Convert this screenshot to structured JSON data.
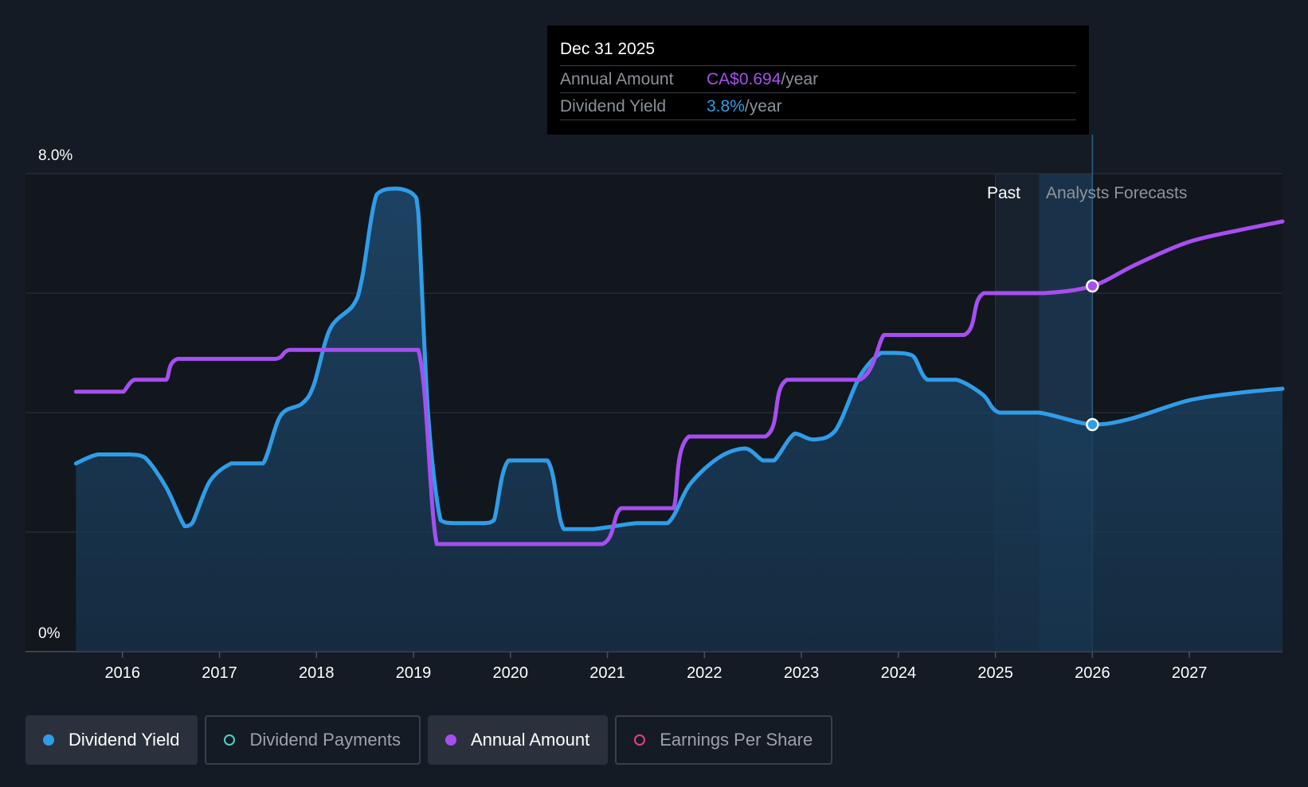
{
  "tooltip": {
    "date": "Dec 31 2025",
    "rows": [
      {
        "label": "Annual Amount",
        "value": "CA$0.694",
        "unit": "/year"
      },
      {
        "label": "Dividend Yield",
        "value": "3.8%",
        "unit": "/year"
      }
    ]
  },
  "legend": [
    {
      "label": "Dividend Yield",
      "color": "#2f9de8",
      "active": true,
      "filled": true
    },
    {
      "label": "Dividend Payments",
      "color": "#4fd1c5",
      "active": false,
      "filled": false
    },
    {
      "label": "Annual Amount",
      "color": "#a64ff0",
      "active": true,
      "filled": true
    },
    {
      "label": "Earnings Per Share",
      "color": "#e0457b",
      "active": false,
      "filled": false
    }
  ],
  "chart_data": {
    "type": "line",
    "y_label_top": "8.0%",
    "y_label_bottom": "0%",
    "ylim": [
      0,
      8
    ],
    "xlim": [
      2015.0,
      2027.96
    ],
    "x_ticks": [
      "2016",
      "2017",
      "2018",
      "2019",
      "2020",
      "2021",
      "2022",
      "2023",
      "2024",
      "2025",
      "2026",
      "2027"
    ],
    "grid": true,
    "past_label": "Past",
    "forecast_label": "Analysts Forecasts",
    "forecast_start": 2025.45,
    "highlight_x": 2026.0,
    "series": [
      {
        "name": "Dividend Yield",
        "color": "#2f9de8",
        "fill": true,
        "points": [
          [
            2015.52,
            3.15
          ],
          [
            2015.75,
            3.3
          ],
          [
            2016.07,
            3.3
          ],
          [
            2016.23,
            3.25
          ],
          [
            2016.45,
            2.75
          ],
          [
            2016.64,
            2.1
          ],
          [
            2016.72,
            2.15
          ],
          [
            2016.9,
            2.85
          ],
          [
            2017.12,
            3.15
          ],
          [
            2017.27,
            3.15
          ],
          [
            2017.45,
            3.15
          ],
          [
            2017.63,
            3.95
          ],
          [
            2017.85,
            4.15
          ],
          [
            2017.97,
            4.45
          ],
          [
            2018.14,
            5.4
          ],
          [
            2018.38,
            5.8
          ],
          [
            2018.47,
            6.25
          ],
          [
            2018.62,
            7.65
          ],
          [
            2018.82,
            7.75
          ],
          [
            2019.0,
            7.65
          ],
          [
            2019.05,
            7.35
          ],
          [
            2019.15,
            4.0
          ],
          [
            2019.28,
            2.2
          ],
          [
            2019.42,
            2.15
          ],
          [
            2019.72,
            2.15
          ],
          [
            2019.83,
            2.2
          ],
          [
            2019.98,
            3.2
          ],
          [
            2020.38,
            3.2
          ],
          [
            2020.55,
            2.05
          ],
          [
            2020.85,
            2.05
          ],
          [
            2021.3,
            2.15
          ],
          [
            2021.62,
            2.15
          ],
          [
            2021.85,
            2.8
          ],
          [
            2022.15,
            3.25
          ],
          [
            2022.42,
            3.4
          ],
          [
            2022.6,
            3.2
          ],
          [
            2022.72,
            3.2
          ],
          [
            2022.93,
            3.65
          ],
          [
            2023.12,
            3.55
          ],
          [
            2023.35,
            3.7
          ],
          [
            2023.6,
            4.6
          ],
          [
            2023.82,
            5.0
          ],
          [
            2023.97,
            5.0
          ],
          [
            2024.15,
            4.95
          ],
          [
            2024.3,
            4.55
          ],
          [
            2024.6,
            4.55
          ],
          [
            2024.87,
            4.3
          ],
          [
            2025.04,
            4.0
          ],
          [
            2025.45,
            4.0
          ],
          [
            2026.0,
            3.8
          ],
          [
            2026.4,
            3.9
          ],
          [
            2026.98,
            4.2
          ],
          [
            2027.5,
            4.33
          ],
          [
            2027.96,
            4.4
          ]
        ]
      },
      {
        "name": "Annual Amount",
        "color": "#a64ff0",
        "fill": false,
        "points": [
          [
            2015.52,
            4.35
          ],
          [
            2015.95,
            4.35
          ],
          [
            2016.01,
            4.35
          ],
          [
            2016.12,
            4.55
          ],
          [
            2016.32,
            4.55
          ],
          [
            2016.45,
            4.55
          ],
          [
            2016.57,
            4.9
          ],
          [
            2017.15,
            4.9
          ],
          [
            2017.58,
            4.9
          ],
          [
            2017.72,
            5.05
          ],
          [
            2018.05,
            5.05
          ],
          [
            2018.64,
            5.05
          ],
          [
            2019.05,
            5.05
          ],
          [
            2019.24,
            1.8
          ],
          [
            2019.5,
            1.8
          ],
          [
            2020.3,
            1.8
          ],
          [
            2020.95,
            1.8
          ],
          [
            2021.14,
            2.4
          ],
          [
            2021.5,
            2.4
          ],
          [
            2021.68,
            2.4
          ],
          [
            2021.84,
            3.6
          ],
          [
            2022.63,
            3.6
          ],
          [
            2022.85,
            4.55
          ],
          [
            2023.6,
            4.55
          ],
          [
            2023.85,
            5.3
          ],
          [
            2024.0,
            5.3
          ],
          [
            2024.68,
            5.3
          ],
          [
            2024.88,
            6.0
          ],
          [
            2025.5,
            6.0
          ],
          [
            2026.0,
            6.12
          ],
          [
            2026.45,
            6.48
          ],
          [
            2026.98,
            6.85
          ],
          [
            2027.5,
            7.05
          ],
          [
            2027.96,
            7.2
          ]
        ]
      }
    ]
  }
}
